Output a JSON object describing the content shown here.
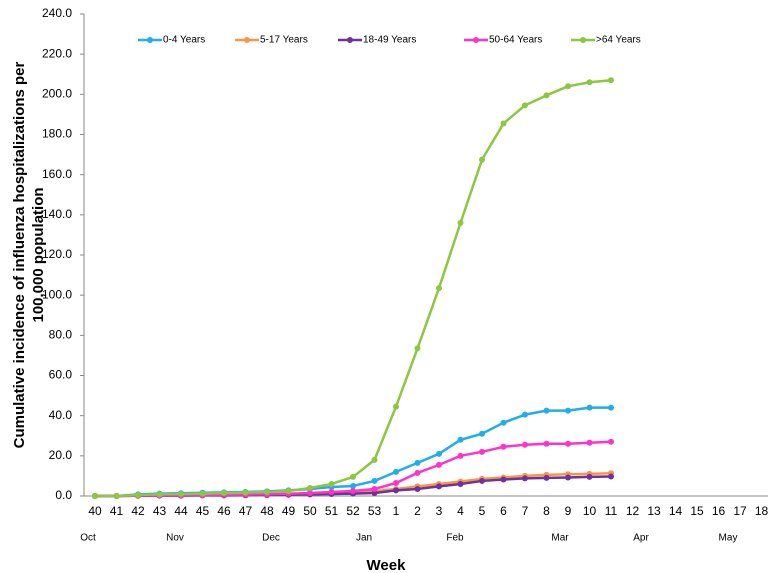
{
  "chart_data": {
    "type": "line",
    "ylabel": [
      "Cumulative incidence of influenza hospitalizations per",
      "100,000 population"
    ],
    "xlabel": "Week",
    "categories": [
      "40",
      "41",
      "42",
      "43",
      "44",
      "45",
      "46",
      "47",
      "48",
      "49",
      "50",
      "51",
      "52",
      "53",
      "1",
      "2",
      "3",
      "4",
      "5",
      "6",
      "7",
      "8",
      "9",
      "10",
      "11",
      "12",
      "13",
      "14",
      "15",
      "16",
      "17",
      "18"
    ],
    "months": [
      "Oct",
      "Nov",
      "Dec",
      "Jan",
      "Feb",
      "Mar",
      "Apr",
      "May"
    ],
    "ylim": [
      0,
      240
    ],
    "yticks": [
      {
        "value": 0,
        "label": "0.0"
      },
      {
        "value": 20,
        "label": "20.0"
      },
      {
        "value": 40,
        "label": "40.0"
      },
      {
        "value": 60,
        "label": "60.0"
      },
      {
        "value": 80,
        "label": "80.0"
      },
      {
        "value": 100,
        "label": "100.0"
      },
      {
        "value": 120,
        "label": "120.0"
      },
      {
        "value": 140,
        "label": "140.0"
      },
      {
        "value": 160,
        "label": "160.0"
      },
      {
        "value": 180,
        "label": "180.0"
      },
      {
        "value": 200,
        "label": "200.0"
      },
      {
        "value": 220,
        "label": "220.0"
      },
      {
        "value": 240,
        "label": "240.0"
      }
    ],
    "legend": "top",
    "series": [
      {
        "name": "0-4 Years",
        "color": "#1eaee8",
        "values": [
          0,
          0,
          0.8,
          1.2,
          1.4,
          1.6,
          1.8,
          2,
          2.3,
          2.8,
          3.5,
          4.5,
          5,
          7.5,
          12,
          16.5,
          21,
          28,
          31,
          36.5,
          40.5,
          42.5,
          42.5,
          44,
          44,
          null,
          null,
          null,
          null,
          null,
          null,
          null
        ]
      },
      {
        "name": "5-17 Years",
        "color": "#f79646",
        "values": [
          0,
          0,
          0.1,
          0.2,
          0.2,
          0.3,
          0.3,
          0.4,
          0.5,
          0.6,
          0.8,
          1.2,
          1.8,
          2.5,
          3.5,
          4.8,
          6,
          7.2,
          8.5,
          9.2,
          10,
          10.5,
          10.8,
          11,
          11.3,
          null,
          null,
          null,
          null,
          null,
          null,
          null
        ]
      },
      {
        "name": "18-49 Years",
        "color": "#7030a0",
        "values": [
          0,
          0,
          0.1,
          0.2,
          0.2,
          0.3,
          0.3,
          0.4,
          0.5,
          0.6,
          0.8,
          1,
          1.2,
          1.5,
          2.8,
          3.5,
          4.8,
          6,
          7.5,
          8.2,
          8.8,
          9,
          9.2,
          9.5,
          9.7,
          null,
          null,
          null,
          null,
          null,
          null,
          null
        ]
      },
      {
        "name": "50-64 Years",
        "color": "#ff33cc",
        "values": [
          0,
          0,
          0.2,
          0.3,
          0.4,
          0.5,
          0.6,
          0.7,
          0.9,
          1.1,
          1.5,
          2,
          2.5,
          3.5,
          6.5,
          11.5,
          15.5,
          20,
          22,
          24.5,
          25.5,
          26,
          26,
          26.5,
          27,
          null,
          null,
          null,
          null,
          null,
          null,
          null
        ]
      },
      {
        "name": ">64 Years",
        "color": "#8dc63f",
        "values": [
          0,
          0,
          0.5,
          0.8,
          1,
          1.2,
          1.5,
          1.7,
          2,
          2.5,
          4,
          6,
          9.5,
          18,
          44.5,
          73.5,
          103.5,
          136,
          167.5,
          185.5,
          194.5,
          199.5,
          204,
          206,
          207,
          null,
          null,
          null,
          null,
          null,
          null,
          null
        ]
      }
    ]
  }
}
